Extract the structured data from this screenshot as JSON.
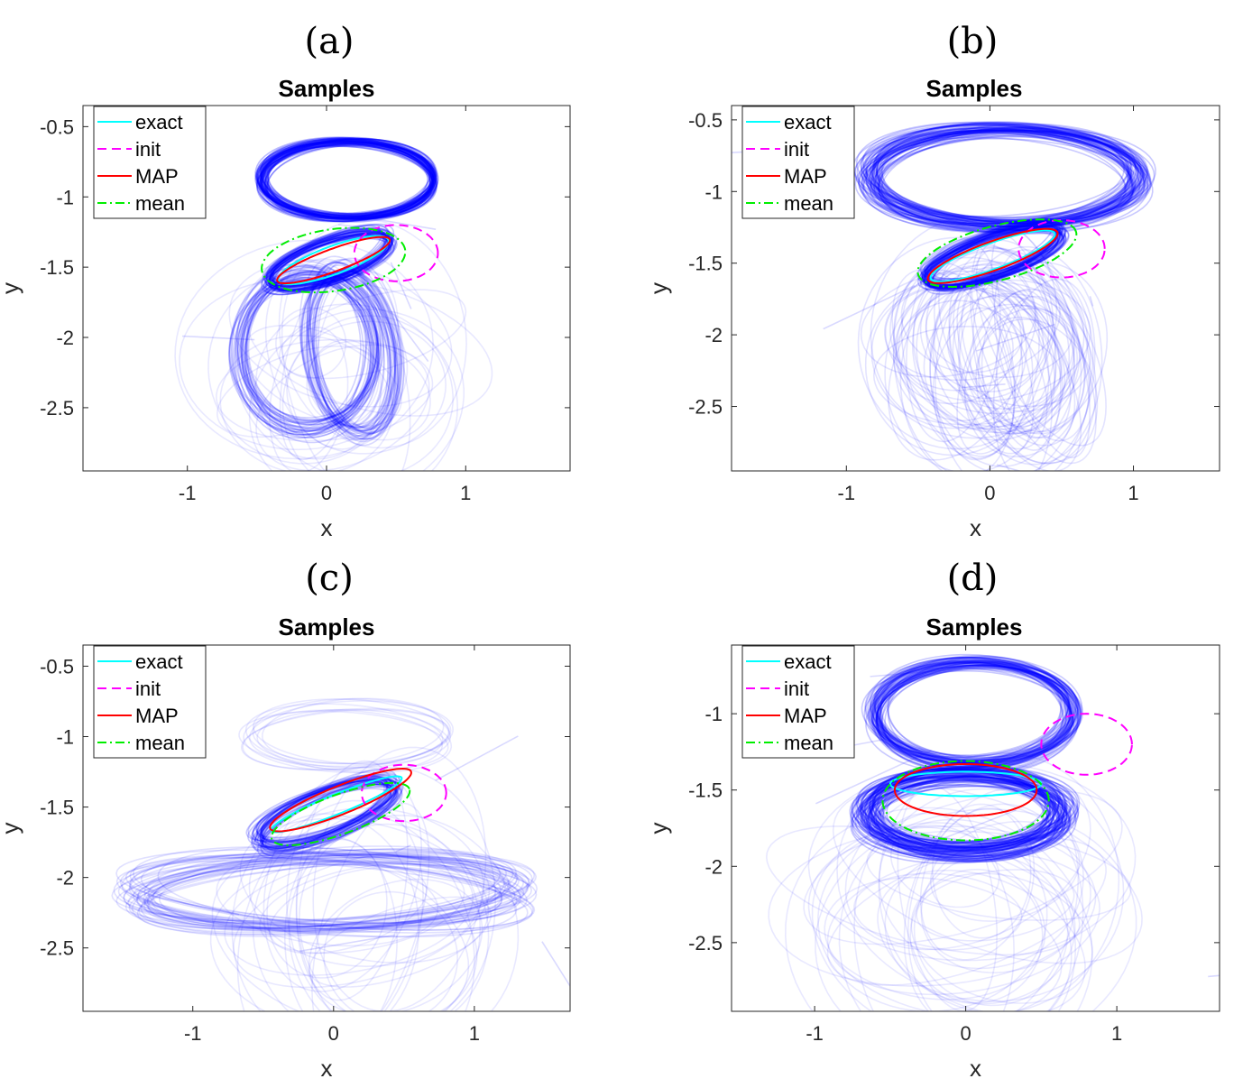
{
  "chart_data": [
    {
      "panel_label": "(a)",
      "type": "line",
      "title": "Samples",
      "xlabel": "x",
      "ylabel": "y",
      "xlim": [
        -1.75,
        1.75
      ],
      "ylim": [
        -2.95,
        -0.35
      ],
      "xticks": [
        -1,
        0,
        1
      ],
      "yticks": [
        -0.5,
        -1,
        -1.5,
        -2,
        -2.5
      ],
      "ytick_labels": [
        "-0.5",
        "-1",
        "-1.5",
        "-2",
        "-2.5"
      ],
      "xtick_labels": [
        "-1",
        "0",
        "1"
      ],
      "legend": {
        "position": "top-left",
        "entries": [
          "exact",
          "init",
          "MAP",
          "mean"
        ]
      },
      "series": [
        {
          "name": "exact",
          "color": "#00ffff",
          "style": "solid",
          "ellipse": {
            "cx": 0.05,
            "cy": -1.45,
            "rx": 0.42,
            "ry": 0.1,
            "angle_deg": 20
          }
        },
        {
          "name": "init",
          "color": "#ff00ff",
          "style": "dashed",
          "ellipse": {
            "cx": 0.5,
            "cy": -1.4,
            "rx": 0.3,
            "ry": 0.2,
            "angle_deg": 0
          }
        },
        {
          "name": "MAP",
          "color": "#ff0000",
          "style": "solid",
          "ellipse": {
            "cx": 0.05,
            "cy": -1.45,
            "rx": 0.43,
            "ry": 0.08,
            "angle_deg": 20
          }
        },
        {
          "name": "mean",
          "color": "#00ee00",
          "style": "dashdot",
          "ellipse": {
            "cx": 0.05,
            "cy": -1.45,
            "rx": 0.52,
            "ry": 0.22,
            "angle_deg": 8
          }
        }
      ],
      "sample_clusters": [
        {
          "cx": 0.15,
          "cy": -0.88,
          "rx": 0.62,
          "ry": 0.27,
          "angle_deg": 0,
          "count": 60,
          "jitter": 0.025,
          "opacity": 0.45
        },
        {
          "cx": 0.02,
          "cy": -1.45,
          "rx": 0.46,
          "ry": 0.14,
          "angle_deg": 20,
          "count": 45,
          "jitter": 0.03,
          "opacity": 0.4
        },
        {
          "cx": -0.15,
          "cy": -2.1,
          "rx": 0.48,
          "ry": 0.56,
          "angle_deg": 0,
          "count": 30,
          "jitter": 0.05,
          "opacity": 0.3
        },
        {
          "cx": 0.18,
          "cy": -2.1,
          "rx": 0.3,
          "ry": 0.6,
          "angle_deg": 10,
          "count": 30,
          "jitter": 0.05,
          "opacity": 0.25
        },
        {
          "cx": 0.05,
          "cy": -2.25,
          "rx": 0.6,
          "ry": 0.55,
          "angle_deg": 0,
          "count": 25,
          "jitter": 0.3,
          "opacity": 0.15
        }
      ]
    },
    {
      "panel_label": "(b)",
      "type": "line",
      "title": "Samples",
      "xlabel": "x",
      "ylabel": "y",
      "xlim": [
        -1.8,
        1.6
      ],
      "ylim": [
        -2.95,
        -0.4
      ],
      "xticks": [
        -1,
        0,
        1
      ],
      "yticks": [
        -0.5,
        -1,
        -1.5,
        -2,
        -2.5
      ],
      "ytick_labels": [
        "-0.5",
        "-1",
        "-1.5",
        "-2",
        "-2.5"
      ],
      "xtick_labels": [
        "-1",
        "0",
        "1"
      ],
      "legend": {
        "position": "top-left",
        "entries": [
          "exact",
          "init",
          "MAP",
          "mean"
        ]
      },
      "series": [
        {
          "name": "exact",
          "color": "#00ffff",
          "style": "solid",
          "ellipse": {
            "cx": 0.02,
            "cy": -1.45,
            "rx": 0.46,
            "ry": 0.09,
            "angle_deg": 20
          }
        },
        {
          "name": "init",
          "color": "#ff00ff",
          "style": "dashed",
          "ellipse": {
            "cx": 0.5,
            "cy": -1.4,
            "rx": 0.3,
            "ry": 0.2,
            "angle_deg": 0
          }
        },
        {
          "name": "MAP",
          "color": "#ff0000",
          "style": "solid",
          "ellipse": {
            "cx": 0.02,
            "cy": -1.45,
            "rx": 0.48,
            "ry": 0.1,
            "angle_deg": 20
          }
        },
        {
          "name": "mean",
          "color": "#00ee00",
          "style": "dashdot",
          "ellipse": {
            "cx": 0.05,
            "cy": -1.43,
            "rx": 0.57,
            "ry": 0.19,
            "angle_deg": 15
          }
        }
      ],
      "sample_clusters": [
        {
          "cx": 0.1,
          "cy": -0.9,
          "rx": 0.95,
          "ry": 0.33,
          "angle_deg": 0,
          "count": 70,
          "jitter": 0.04,
          "opacity": 0.35
        },
        {
          "cx": 0.02,
          "cy": -1.45,
          "rx": 0.5,
          "ry": 0.14,
          "angle_deg": 20,
          "count": 50,
          "jitter": 0.03,
          "opacity": 0.4
        },
        {
          "cx": -0.1,
          "cy": -2.1,
          "rx": 0.5,
          "ry": 0.55,
          "angle_deg": 0,
          "count": 30,
          "jitter": 0.2,
          "opacity": 0.18
        },
        {
          "cx": 0.2,
          "cy": -2.2,
          "rx": 0.4,
          "ry": 0.6,
          "angle_deg": 5,
          "count": 30,
          "jitter": 0.2,
          "opacity": 0.18
        }
      ]
    },
    {
      "panel_label": "(c)",
      "type": "line",
      "title": "Samples",
      "xlabel": "x",
      "ylabel": "y",
      "xlim": [
        -1.78,
        1.68
      ],
      "ylim": [
        -2.95,
        -0.35
      ],
      "xticks": [
        -1,
        0,
        1
      ],
      "yticks": [
        -0.5,
        -1,
        -1.5,
        -2,
        -2.5
      ],
      "ytick_labels": [
        "-0.5",
        "-1",
        "-1.5",
        "-2",
        "-2.5"
      ],
      "xtick_labels": [
        "-1",
        "0",
        "1"
      ],
      "legend": {
        "position": "top-left",
        "entries": [
          "exact",
          "init",
          "MAP",
          "mean"
        ]
      },
      "series": [
        {
          "name": "exact",
          "color": "#00ffff",
          "style": "solid",
          "ellipse": {
            "cx": 0.02,
            "cy": -1.48,
            "rx": 0.5,
            "ry": 0.07,
            "angle_deg": 22
          }
        },
        {
          "name": "init",
          "color": "#ff00ff",
          "style": "dashed",
          "ellipse": {
            "cx": 0.5,
            "cy": -1.4,
            "rx": 0.3,
            "ry": 0.2,
            "angle_deg": 0
          }
        },
        {
          "name": "MAP",
          "color": "#ff0000",
          "style": "solid",
          "ellipse": {
            "cx": 0.05,
            "cy": -1.45,
            "rx": 0.54,
            "ry": 0.1,
            "angle_deg": 22
          }
        },
        {
          "name": "mean",
          "color": "#00ee00",
          "style": "dashdot",
          "ellipse": {
            "cx": 0.05,
            "cy": -1.55,
            "rx": 0.52,
            "ry": 0.14,
            "angle_deg": 20
          }
        }
      ],
      "sample_clusters": [
        {
          "cx": -0.05,
          "cy": -1.55,
          "rx": 0.52,
          "ry": 0.15,
          "angle_deg": 22,
          "count": 45,
          "jitter": 0.04,
          "opacity": 0.35
        },
        {
          "cx": -0.05,
          "cy": -2.1,
          "rx": 1.35,
          "ry": 0.25,
          "angle_deg": 0,
          "count": 40,
          "jitter": 0.05,
          "opacity": 0.2
        },
        {
          "cx": 0.1,
          "cy": -1.0,
          "rx": 0.7,
          "ry": 0.22,
          "angle_deg": 0,
          "count": 10,
          "jitter": 0.04,
          "opacity": 0.15
        },
        {
          "cx": 0.2,
          "cy": -2.3,
          "rx": 0.6,
          "ry": 0.6,
          "angle_deg": 0,
          "count": 25,
          "jitter": 0.3,
          "opacity": 0.15
        }
      ]
    },
    {
      "panel_label": "(d)",
      "type": "line",
      "title": "Samples",
      "xlabel": "x",
      "ylabel": "y",
      "xlim": [
        -1.55,
        1.68
      ],
      "ylim": [
        -2.95,
        -0.55
      ],
      "xticks": [
        -1,
        0,
        1
      ],
      "yticks": [
        -1,
        -1.5,
        -2,
        -2.5
      ],
      "ytick_labels": [
        "-1",
        "-1.5",
        "-2",
        "-2.5"
      ],
      "xtick_labels": [
        "-1",
        "0",
        "1"
      ],
      "legend": {
        "position": "top-left",
        "entries": [
          "exact",
          "init",
          "MAP",
          "mean"
        ]
      },
      "series": [
        {
          "name": "exact",
          "color": "#00ffff",
          "style": "solid",
          "ellipse": {
            "cx": 0.0,
            "cy": -1.46,
            "rx": 0.5,
            "ry": 0.08,
            "angle_deg": 0
          }
        },
        {
          "name": "init",
          "color": "#ff00ff",
          "style": "dashed",
          "ellipse": {
            "cx": 0.8,
            "cy": -1.2,
            "rx": 0.3,
            "ry": 0.2,
            "angle_deg": 0
          }
        },
        {
          "name": "MAP",
          "color": "#ff0000",
          "style": "solid",
          "ellipse": {
            "cx": 0.0,
            "cy": -1.5,
            "rx": 0.47,
            "ry": 0.17,
            "angle_deg": 0
          }
        },
        {
          "name": "mean",
          "color": "#00ee00",
          "style": "dashdot",
          "ellipse": {
            "cx": 0.0,
            "cy": -1.57,
            "rx": 0.55,
            "ry": 0.26,
            "angle_deg": 0
          }
        }
      ],
      "sample_clusters": [
        {
          "cx": 0.05,
          "cy": -1.0,
          "rx": 0.65,
          "ry": 0.33,
          "angle_deg": 0,
          "count": 60,
          "jitter": 0.04,
          "opacity": 0.35
        },
        {
          "cx": 0.0,
          "cy": -1.65,
          "rx": 0.65,
          "ry": 0.25,
          "angle_deg": 0,
          "count": 80,
          "jitter": 0.06,
          "opacity": 0.4
        },
        {
          "cx": 0.0,
          "cy": -2.25,
          "rx": 0.7,
          "ry": 0.55,
          "angle_deg": 0,
          "count": 35,
          "jitter": 0.3,
          "opacity": 0.15
        }
      ]
    }
  ]
}
